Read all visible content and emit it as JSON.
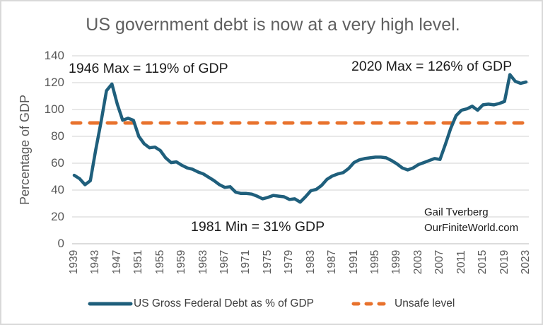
{
  "title": "US government debt is now at a very high level.",
  "annotations": {
    "max_1946": "1946 Max = 119% of GDP",
    "max_2020": "2020 Max = 126% of GDP",
    "min_1981": "1981 Min = 31% GDP"
  },
  "credit": {
    "line1": "Gail Tverberg",
    "line2": "OurFiniteWorld.com"
  },
  "colors": {
    "series": "#1F5F7C",
    "threshold": "#E8722D",
    "gridline": "#D9D9D9",
    "zero_line": "#C6C6C6",
    "axis_text": "#595959",
    "title_text": "#5F5F5F",
    "annotation_text": "#1B1B1B"
  },
  "chart_data": {
    "type": "line",
    "title": "US government debt is now at a very high level.",
    "xlabel": "",
    "ylabel": "Percentage of GDP",
    "ylim": [
      0,
      140
    ],
    "y_ticks": [
      0,
      20,
      40,
      60,
      80,
      100,
      120,
      140
    ],
    "x_start_year": 1939,
    "x_end_year": 2023,
    "x_tick_step": 4,
    "x_tick_labels": [
      "1939",
      "1943",
      "1947",
      "1951",
      "1955",
      "1959",
      "1963",
      "1967",
      "1971",
      "1975",
      "1979",
      "1983",
      "1987",
      "1991",
      "1995",
      "1999",
      "2003",
      "2007",
      "2011",
      "2015",
      "2019",
      "2023"
    ],
    "grid": "horizontal",
    "legend_position": "bottom",
    "series": [
      {
        "name": "US Gross Federal Debt as % of GDP",
        "type": "line",
        "style": "solid",
        "color": "#1F5F7C",
        "values": [
          51,
          48.5,
          44,
          47,
          70,
          91,
          114,
          119,
          104,
          92,
          93.5,
          92,
          80,
          74.5,
          71.5,
          72,
          69.5,
          64,
          60.5,
          61,
          58.5,
          56.5,
          55.5,
          53.5,
          52,
          49.5,
          47,
          44,
          42,
          42.5,
          38.5,
          37.5,
          37.5,
          37,
          35.5,
          33.5,
          34.5,
          36,
          35.5,
          35,
          33,
          33.5,
          31,
          35,
          39.5,
          40.5,
          43.5,
          48,
          50.5,
          52,
          53,
          56,
          60.5,
          62.5,
          63.5,
          64,
          64.5,
          64.5,
          64,
          62,
          59.5,
          56.5,
          55,
          56.5,
          59,
          60.5,
          62,
          63.5,
          62.8,
          74,
          86,
          95.5,
          99.5,
          100.5,
          102.5,
          99.5,
          103.5,
          104,
          103.5,
          104.5,
          106,
          126,
          121,
          119.5,
          120.5
        ]
      },
      {
        "name": "Unsafe level",
        "type": "threshold",
        "style": "dashed",
        "color": "#E8722D",
        "value": 90
      }
    ]
  }
}
